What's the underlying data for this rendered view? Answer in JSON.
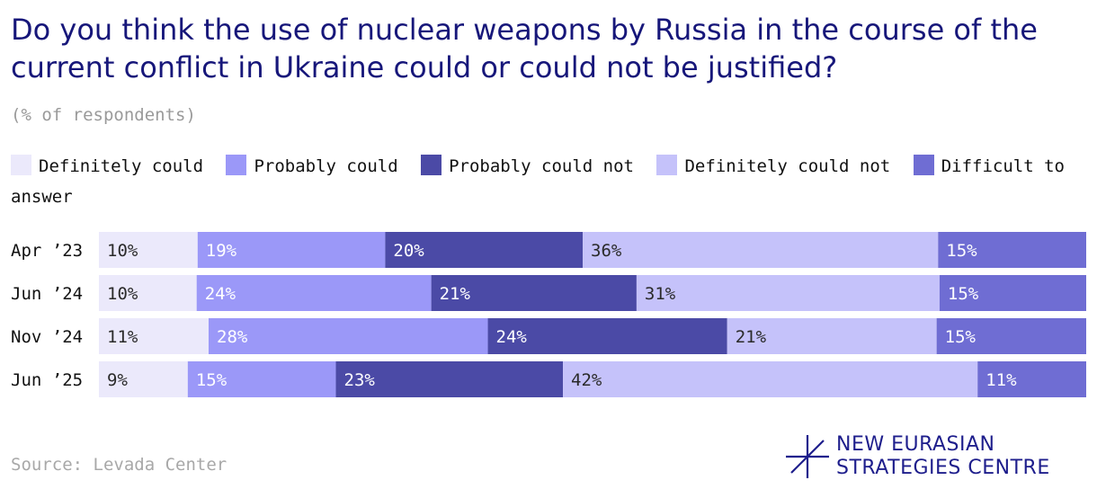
{
  "title": "Do you think the use of nuclear weapons by Russia in the course of the current conflict in Ukraine could or could not be justified?",
  "subtitle": "(% of respondents)",
  "source": "Source: Levada Center",
  "logo": {
    "line1": "NEW EURASIAN",
    "line2": "STRATEGIES CENTRE",
    "icon": "star-cross-icon"
  },
  "legend": [
    {
      "label": "Definitely could",
      "color": "#ebe9fb"
    },
    {
      "label": "Probably could",
      "color": "#9b98f8"
    },
    {
      "label": "Probably could not",
      "color": "#4b4aa6"
    },
    {
      "label": "Definitely could not",
      "color": "#c5c2fa"
    },
    {
      "label": "Difficult to answer",
      "color": "#6f6dd3"
    }
  ],
  "chart_data": {
    "type": "bar",
    "orientation": "horizontal",
    "stacked": true,
    "unit": "%",
    "categories": [
      "Apr ’23",
      "Jun ’24",
      "Nov ’24",
      "Jun ’25"
    ],
    "series": [
      {
        "name": "Definitely could",
        "values": [
          10,
          10,
          11,
          9
        ],
        "color": "#ebe9fb",
        "text_color": "#2a2a2a"
      },
      {
        "name": "Probably could",
        "values": [
          19,
          24,
          28,
          15
        ],
        "color": "#9b98f8",
        "text_color": "#ffffff"
      },
      {
        "name": "Probably could not",
        "values": [
          20,
          21,
          24,
          23
        ],
        "color": "#4b4aa6",
        "text_color": "#ffffff"
      },
      {
        "name": "Definitely could not",
        "values": [
          36,
          31,
          21,
          42
        ],
        "color": "#c5c2fa",
        "text_color": "#2a2a2a"
      },
      {
        "name": "Difficult to answer",
        "values": [
          15,
          15,
          15,
          11
        ],
        "color": "#6f6dd3",
        "text_color": "#ffffff"
      }
    ]
  }
}
